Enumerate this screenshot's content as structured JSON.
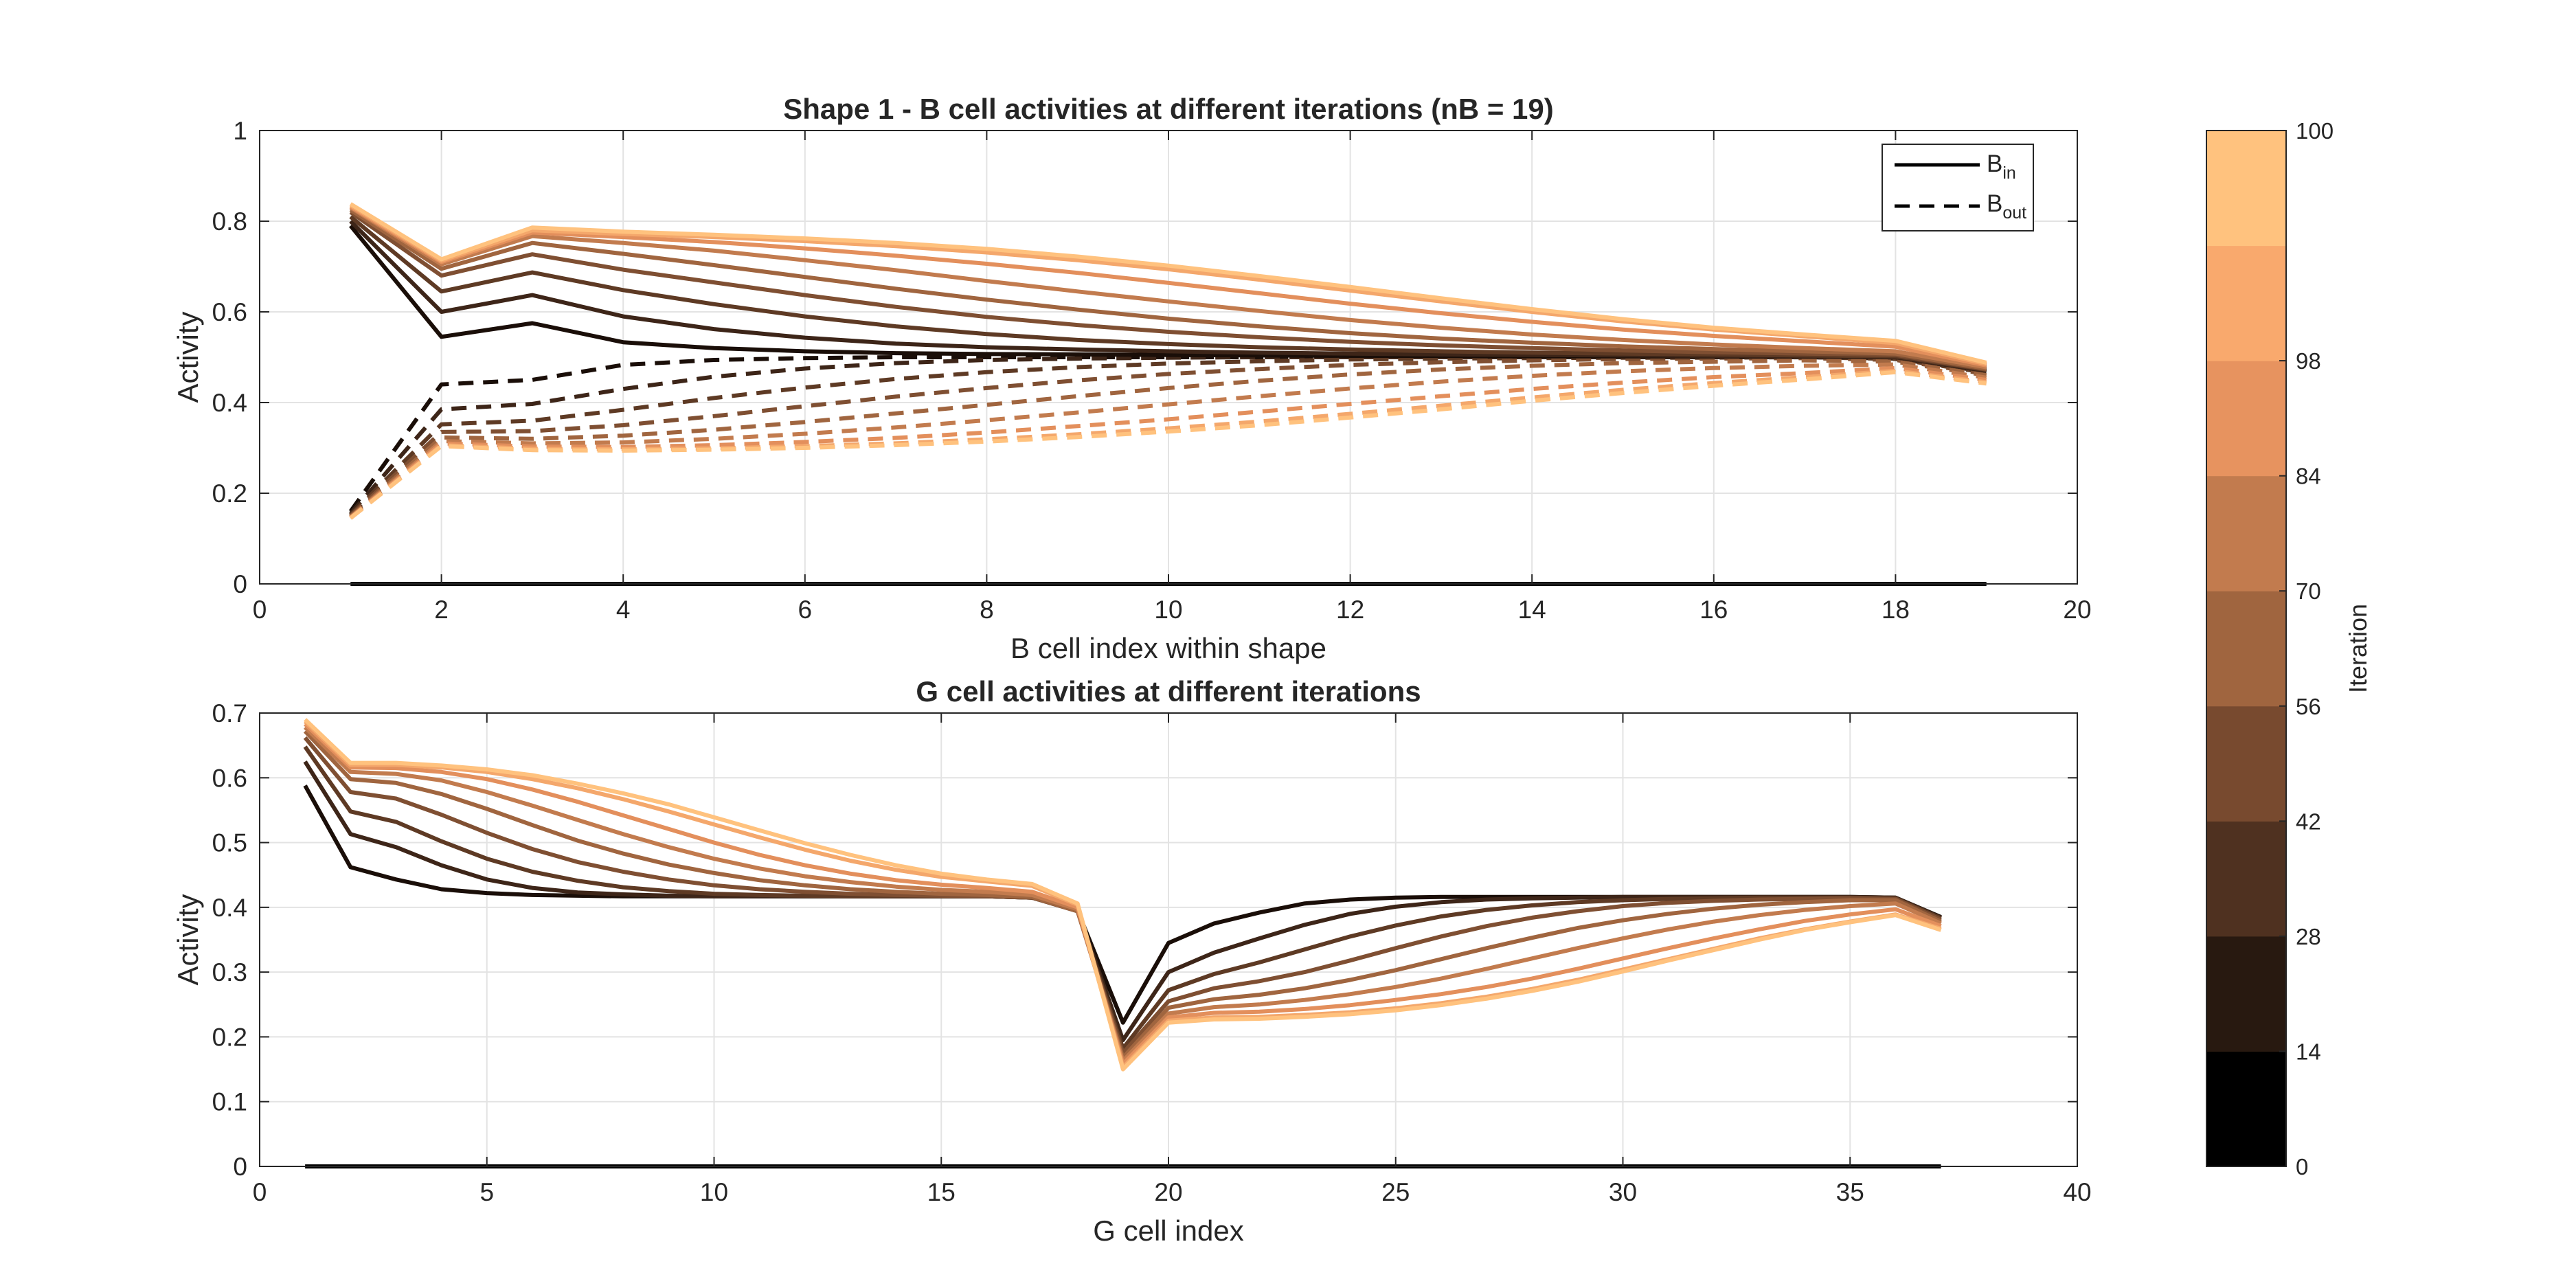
{
  "chart_data": [
    {
      "type": "line",
      "title": "Shape 1 - B cell activities at different iterations (nB = 19)",
      "xlabel": "B cell index within shape",
      "ylabel": "Activity",
      "xlim": [
        0,
        20
      ],
      "ylim": [
        0,
        1
      ],
      "xticks": [
        "0",
        "2",
        "4",
        "6",
        "8",
        "10",
        "12",
        "14",
        "16",
        "18",
        "20"
      ],
      "yticks": [
        "0",
        "0.2",
        "0.4",
        "0.6",
        "0.8",
        "1"
      ],
      "grid": true,
      "legend": {
        "placement": "top-right",
        "entries": [
          {
            "base": "B",
            "sub": "in",
            "style": "solid"
          },
          {
            "base": "B",
            "sub": "out",
            "style": "dashed"
          }
        ]
      },
      "x": [
        1,
        2,
        3,
        4,
        5,
        6,
        7,
        8,
        9,
        10,
        11,
        12,
        13,
        14,
        15,
        16,
        17,
        18,
        19
      ],
      "series_in": [
        {
          "color": "#1a0e08",
          "values": [
            0.79,
            0.545,
            0.575,
            0.533,
            0.52,
            0.513,
            0.509,
            0.507,
            0.506,
            0.505,
            0.504,
            0.503,
            0.503,
            0.502,
            0.502,
            0.502,
            0.501,
            0.5,
            0.47
          ]
        },
        {
          "color": "#3d2518",
          "values": [
            0.8,
            0.6,
            0.637,
            0.59,
            0.562,
            0.543,
            0.53,
            0.522,
            0.517,
            0.513,
            0.51,
            0.508,
            0.506,
            0.505,
            0.504,
            0.503,
            0.502,
            0.5,
            0.47
          ]
        },
        {
          "color": "#5e3a24",
          "values": [
            0.81,
            0.645,
            0.687,
            0.648,
            0.617,
            0.59,
            0.568,
            0.551,
            0.538,
            0.529,
            0.522,
            0.517,
            0.513,
            0.51,
            0.508,
            0.506,
            0.504,
            0.502,
            0.472
          ]
        },
        {
          "color": "#7f4f32",
          "values": [
            0.82,
            0.68,
            0.727,
            0.693,
            0.665,
            0.637,
            0.611,
            0.589,
            0.571,
            0.556,
            0.544,
            0.534,
            0.526,
            0.52,
            0.515,
            0.511,
            0.508,
            0.505,
            0.473
          ]
        },
        {
          "color": "#a0653f",
          "values": [
            0.825,
            0.695,
            0.752,
            0.728,
            0.703,
            0.677,
            0.651,
            0.627,
            0.605,
            0.585,
            0.568,
            0.553,
            0.541,
            0.532,
            0.524,
            0.518,
            0.513,
            0.508,
            0.475
          ]
        },
        {
          "color": "#c27b4e",
          "values": [
            0.83,
            0.705,
            0.767,
            0.752,
            0.735,
            0.714,
            0.692,
            0.668,
            0.645,
            0.623,
            0.602,
            0.582,
            0.565,
            0.55,
            0.538,
            0.528,
            0.52,
            0.513,
            0.478
          ]
        },
        {
          "color": "#e38f5c",
          "values": [
            0.832,
            0.71,
            0.775,
            0.765,
            0.754,
            0.74,
            0.724,
            0.706,
            0.686,
            0.664,
            0.641,
            0.618,
            0.597,
            0.578,
            0.561,
            0.547,
            0.535,
            0.523,
            0.482
          ]
        },
        {
          "color": "#f4a76b",
          "values": [
            0.835,
            0.713,
            0.78,
            0.772,
            0.765,
            0.756,
            0.745,
            0.731,
            0.714,
            0.694,
            0.671,
            0.647,
            0.623,
            0.6,
            0.579,
            0.561,
            0.546,
            0.531,
            0.485
          ]
        },
        {
          "color": "#ffc27e",
          "values": [
            0.838,
            0.716,
            0.786,
            0.777,
            0.77,
            0.762,
            0.752,
            0.739,
            0.722,
            0.702,
            0.679,
            0.655,
            0.63,
            0.606,
            0.584,
            0.565,
            0.55,
            0.536,
            0.488
          ]
        }
      ],
      "series_out": [
        {
          "color": "#1a0e08",
          "values": [
            0.16,
            0.44,
            0.45,
            0.483,
            0.494,
            0.498,
            0.5,
            0.5,
            0.5,
            0.5,
            0.5,
            0.5,
            0.5,
            0.5,
            0.5,
            0.5,
            0.5,
            0.498,
            0.47
          ]
        },
        {
          "color": "#3d2518",
          "values": [
            0.155,
            0.385,
            0.397,
            0.43,
            0.457,
            0.475,
            0.487,
            0.494,
            0.497,
            0.499,
            0.5,
            0.5,
            0.5,
            0.5,
            0.5,
            0.5,
            0.5,
            0.497,
            0.468
          ]
        },
        {
          "color": "#5e3a24",
          "values": [
            0.152,
            0.352,
            0.36,
            0.384,
            0.41,
            0.433,
            0.452,
            0.467,
            0.478,
            0.486,
            0.491,
            0.495,
            0.497,
            0.498,
            0.499,
            0.499,
            0.5,
            0.496,
            0.466
          ]
        },
        {
          "color": "#7f4f32",
          "values": [
            0.15,
            0.335,
            0.337,
            0.35,
            0.37,
            0.392,
            0.413,
            0.432,
            0.449,
            0.463,
            0.474,
            0.483,
            0.489,
            0.493,
            0.496,
            0.497,
            0.498,
            0.494,
            0.463
          ]
        },
        {
          "color": "#a0653f",
          "values": [
            0.148,
            0.323,
            0.32,
            0.327,
            0.34,
            0.357,
            0.376,
            0.395,
            0.414,
            0.432,
            0.448,
            0.462,
            0.473,
            0.481,
            0.487,
            0.49,
            0.493,
            0.49,
            0.46
          ]
        },
        {
          "color": "#c27b4e",
          "values": [
            0.147,
            0.315,
            0.31,
            0.312,
            0.32,
            0.331,
            0.345,
            0.361,
            0.378,
            0.396,
            0.414,
            0.431,
            0.446,
            0.459,
            0.469,
            0.476,
            0.481,
            0.484,
            0.455
          ]
        },
        {
          "color": "#e38f5c",
          "values": [
            0.146,
            0.31,
            0.303,
            0.302,
            0.306,
            0.313,
            0.322,
            0.334,
            0.348,
            0.363,
            0.38,
            0.397,
            0.414,
            0.43,
            0.444,
            0.456,
            0.465,
            0.476,
            0.45
          ]
        },
        {
          "color": "#f4a76b",
          "values": [
            0.145,
            0.306,
            0.298,
            0.297,
            0.299,
            0.304,
            0.31,
            0.319,
            0.33,
            0.343,
            0.358,
            0.375,
            0.393,
            0.411,
            0.428,
            0.443,
            0.456,
            0.47,
            0.445
          ]
        },
        {
          "color": "#ffc27e",
          "values": [
            0.145,
            0.304,
            0.295,
            0.294,
            0.296,
            0.3,
            0.306,
            0.314,
            0.324,
            0.336,
            0.35,
            0.367,
            0.385,
            0.404,
            0.421,
            0.437,
            0.451,
            0.467,
            0.442
          ]
        }
      ],
      "baseline": {
        "x": [
          1,
          19
        ],
        "y": 0,
        "color": "#000000"
      }
    },
    {
      "type": "line",
      "title": "G cell activities at different iterations",
      "xlabel": "G cell index",
      "ylabel": "Activity",
      "xlim": [
        0,
        40
      ],
      "ylim": [
        0,
        0.7
      ],
      "xticks": [
        "0",
        "5",
        "10",
        "15",
        "20",
        "25",
        "30",
        "35",
        "40"
      ],
      "yticks": [
        "0",
        "0.1",
        "0.2",
        "0.3",
        "0.4",
        "0.5",
        "0.6",
        "0.7"
      ],
      "grid": true,
      "x": [
        1,
        2,
        3,
        4,
        5,
        6,
        7,
        8,
        9,
        10,
        11,
        12,
        13,
        14,
        15,
        16,
        17,
        18,
        19,
        20,
        21,
        22,
        23,
        24,
        25,
        26,
        27,
        28,
        29,
        30,
        31,
        32,
        33,
        34,
        35,
        36,
        37
      ],
      "series": [
        {
          "color": "#1a0e08",
          "values": [
            0.588,
            0.462,
            0.443,
            0.428,
            0.422,
            0.419,
            0.418,
            0.417,
            0.417,
            0.417,
            0.417,
            0.417,
            0.417,
            0.417,
            0.417,
            0.417,
            0.415,
            0.395,
            0.222,
            0.345,
            0.375,
            0.392,
            0.406,
            0.412,
            0.415,
            0.416,
            0.416,
            0.416,
            0.416,
            0.416,
            0.416,
            0.416,
            0.416,
            0.416,
            0.416,
            0.415,
            0.385
          ]
        },
        {
          "color": "#3d2518",
          "values": [
            0.625,
            0.513,
            0.493,
            0.465,
            0.443,
            0.43,
            0.423,
            0.42,
            0.418,
            0.417,
            0.417,
            0.417,
            0.417,
            0.417,
            0.417,
            0.417,
            0.415,
            0.395,
            0.195,
            0.3,
            0.33,
            0.352,
            0.373,
            0.39,
            0.401,
            0.408,
            0.412,
            0.414,
            0.415,
            0.416,
            0.416,
            0.416,
            0.416,
            0.416,
            0.416,
            0.415,
            0.384
          ]
        },
        {
          "color": "#5e3a24",
          "values": [
            0.648,
            0.548,
            0.532,
            0.502,
            0.475,
            0.455,
            0.441,
            0.431,
            0.425,
            0.421,
            0.419,
            0.418,
            0.417,
            0.417,
            0.417,
            0.417,
            0.415,
            0.394,
            0.182,
            0.272,
            0.297,
            0.315,
            0.335,
            0.355,
            0.372,
            0.386,
            0.396,
            0.403,
            0.408,
            0.411,
            0.413,
            0.414,
            0.415,
            0.415,
            0.415,
            0.414,
            0.383
          ]
        },
        {
          "color": "#7f4f32",
          "values": [
            0.662,
            0.578,
            0.568,
            0.543,
            0.515,
            0.49,
            0.47,
            0.455,
            0.443,
            0.434,
            0.428,
            0.424,
            0.421,
            0.419,
            0.418,
            0.417,
            0.415,
            0.394,
            0.175,
            0.255,
            0.275,
            0.286,
            0.3,
            0.318,
            0.337,
            0.355,
            0.371,
            0.384,
            0.394,
            0.402,
            0.407,
            0.41,
            0.412,
            0.413,
            0.414,
            0.413,
            0.381
          ]
        },
        {
          "color": "#a0653f",
          "values": [
            0.672,
            0.598,
            0.592,
            0.575,
            0.552,
            0.527,
            0.503,
            0.483,
            0.466,
            0.453,
            0.442,
            0.434,
            0.428,
            0.424,
            0.421,
            0.419,
            0.416,
            0.394,
            0.168,
            0.245,
            0.258,
            0.265,
            0.275,
            0.288,
            0.303,
            0.32,
            0.337,
            0.353,
            0.368,
            0.38,
            0.39,
            0.398,
            0.404,
            0.408,
            0.411,
            0.411,
            0.378
          ]
        },
        {
          "color": "#c27b4e",
          "values": [
            0.678,
            0.609,
            0.606,
            0.596,
            0.578,
            0.557,
            0.535,
            0.513,
            0.493,
            0.475,
            0.46,
            0.448,
            0.439,
            0.432,
            0.427,
            0.424,
            0.419,
            0.397,
            0.163,
            0.236,
            0.246,
            0.25,
            0.257,
            0.266,
            0.277,
            0.29,
            0.305,
            0.321,
            0.337,
            0.352,
            0.366,
            0.378,
            0.388,
            0.396,
            0.402,
            0.406,
            0.375
          ]
        },
        {
          "color": "#e38f5c",
          "values": [
            0.683,
            0.616,
            0.615,
            0.609,
            0.598,
            0.582,
            0.563,
            0.542,
            0.521,
            0.5,
            0.481,
            0.465,
            0.452,
            0.442,
            0.435,
            0.43,
            0.424,
            0.4,
            0.158,
            0.23,
            0.237,
            0.239,
            0.243,
            0.249,
            0.257,
            0.266,
            0.277,
            0.29,
            0.305,
            0.321,
            0.337,
            0.352,
            0.366,
            0.379,
            0.389,
            0.397,
            0.371
          ]
        },
        {
          "color": "#f4a76b",
          "values": [
            0.687,
            0.62,
            0.62,
            0.616,
            0.609,
            0.598,
            0.584,
            0.567,
            0.548,
            0.528,
            0.508,
            0.489,
            0.472,
            0.458,
            0.447,
            0.44,
            0.433,
            0.404,
            0.153,
            0.225,
            0.23,
            0.231,
            0.234,
            0.238,
            0.244,
            0.252,
            0.262,
            0.274,
            0.288,
            0.304,
            0.32,
            0.336,
            0.352,
            0.366,
            0.378,
            0.389,
            0.367
          ]
        },
        {
          "color": "#ffc27e",
          "values": [
            0.69,
            0.623,
            0.623,
            0.619,
            0.613,
            0.604,
            0.591,
            0.576,
            0.559,
            0.539,
            0.519,
            0.499,
            0.481,
            0.465,
            0.452,
            0.443,
            0.436,
            0.406,
            0.15,
            0.222,
            0.227,
            0.228,
            0.231,
            0.235,
            0.241,
            0.249,
            0.259,
            0.271,
            0.285,
            0.301,
            0.318,
            0.334,
            0.35,
            0.365,
            0.377,
            0.388,
            0.365
          ]
        }
      ],
      "baseline": {
        "x": [
          1,
          37
        ],
        "y": 0,
        "color": "#000000"
      }
    }
  ],
  "colorbar": {
    "label": "Iteration",
    "ticks": [
      "0",
      "14",
      "28",
      "42",
      "56",
      "70",
      "84",
      "98",
      "100"
    ],
    "tick_values": [
      0,
      14,
      28,
      42,
      56,
      70,
      84,
      98,
      100
    ],
    "range": [
      0,
      100
    ],
    "colors": [
      "#000000",
      "#281910",
      "#4f3120",
      "#784a2f",
      "#a0653f",
      "#c27b4e",
      "#e7935f",
      "#f9a96d",
      "#ffc27e"
    ]
  }
}
